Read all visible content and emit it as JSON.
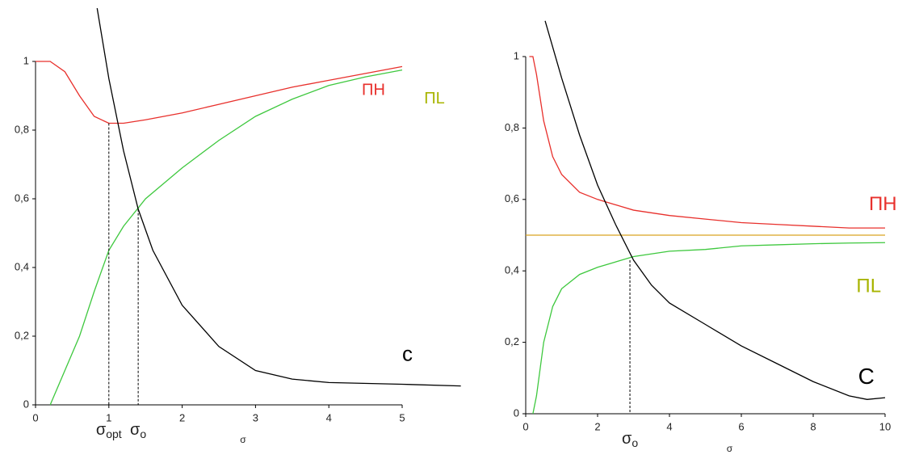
{
  "chart_data": [
    {
      "type": "line",
      "xlabel": "σ",
      "xlim": [
        0,
        5.8
      ],
      "ylim": [
        0,
        1
      ],
      "xticks": [
        0,
        1,
        2,
        3,
        4,
        5
      ],
      "yticks": [
        0,
        {
          "value": 0.2,
          "label": "0,2"
        },
        {
          "value": 0.4,
          "label": "0,4"
        },
        {
          "value": 0.6,
          "label": "0,6"
        },
        {
          "value": 0.8,
          "label": "0,8"
        },
        1
      ],
      "series": [
        {
          "name": "ΠH",
          "color": "#e8302c",
          "x": [
            0,
            0.2,
            0.4,
            0.6,
            0.8,
            1,
            1.2,
            1.5,
            2,
            2.5,
            3,
            3.5,
            4,
            4.5,
            5
          ],
          "values": [
            1,
            1,
            0.97,
            0.9,
            0.84,
            0.82,
            0.82,
            0.83,
            0.85,
            0.875,
            0.9,
            0.925,
            0.945,
            0.965,
            0.985
          ]
        },
        {
          "name": "ΠL",
          "color": "#3ec83e",
          "x": [
            0.2,
            0.4,
            0.6,
            0.8,
            1,
            1.2,
            1.5,
            2,
            2.5,
            3,
            3.5,
            4,
            4.5,
            5
          ],
          "values": [
            0,
            0.1,
            0.2,
            0.33,
            0.45,
            0.52,
            0.6,
            0.69,
            0.77,
            0.84,
            0.89,
            0.93,
            0.955,
            0.975
          ]
        },
        {
          "name": "c",
          "color": "#000000",
          "x": [
            0.84,
            1,
            1.2,
            1.4,
            1.6,
            2,
            2.5,
            3,
            3.5,
            4,
            5,
            5.8
          ],
          "values": [
            1.155,
            0.95,
            0.74,
            0.57,
            0.45,
            0.29,
            0.17,
            0.1,
            0.075,
            0.065,
            0.06,
            0.055
          ]
        }
      ],
      "markers": [
        {
          "x": 1,
          "y": 0.82,
          "symbol": "σ",
          "sub": "opt"
        },
        {
          "x": 1.4,
          "y": 0.57,
          "symbol": "σ",
          "sub": "o"
        }
      ]
    },
    {
      "type": "line",
      "xlabel": "σ",
      "xlim": [
        0,
        10
      ],
      "ylim": [
        0,
        1
      ],
      "xticks": [
        0,
        2,
        4,
        6,
        8,
        10
      ],
      "yticks": [
        0,
        {
          "value": 0.2,
          "label": "0,2"
        },
        {
          "value": 0.4,
          "label": "0,4"
        },
        {
          "value": 0.6,
          "label": "0,6"
        },
        {
          "value": 0.8,
          "label": "0,8"
        },
        1
      ],
      "series": [
        {
          "name": "ΠH",
          "color": "#e8302c",
          "x": [
            0.1,
            0.2,
            0.3,
            0.5,
            0.75,
            1,
            1.5,
            2,
            3,
            4,
            5,
            6,
            7,
            8,
            9,
            10
          ],
          "values": [
            1,
            1,
            0.95,
            0.82,
            0.72,
            0.67,
            0.62,
            0.6,
            0.57,
            0.555,
            0.545,
            0.535,
            0.53,
            0.525,
            0.52,
            0.52
          ]
        },
        {
          "name": "ΠL",
          "color": "#3ec83e",
          "x": [
            0.2,
            0.3,
            0.5,
            0.75,
            1,
            1.5,
            2,
            3,
            4,
            5,
            6,
            7,
            8,
            9,
            10
          ],
          "values": [
            0,
            0.05,
            0.2,
            0.3,
            0.35,
            0.39,
            0.41,
            0.44,
            0.455,
            0.46,
            0.47,
            0.473,
            0.476,
            0.478,
            0.479
          ]
        },
        {
          "color": "#d9a520",
          "x": [
            0,
            10
          ],
          "values": [
            0.5,
            0.5
          ]
        },
        {
          "name": "C",
          "color": "#000000",
          "x": [
            0.54,
            1,
            1.5,
            2,
            2.5,
            3,
            3.5,
            4,
            5,
            6,
            7,
            8,
            9,
            9.5,
            10
          ],
          "values": [
            1.1,
            0.94,
            0.78,
            0.64,
            0.53,
            0.43,
            0.36,
            0.31,
            0.25,
            0.19,
            0.14,
            0.09,
            0.05,
            0.04,
            0.045
          ]
        }
      ],
      "markers": [
        {
          "x": 2.9,
          "y": 0.43,
          "symbol": "σ",
          "sub": "o"
        }
      ]
    }
  ]
}
